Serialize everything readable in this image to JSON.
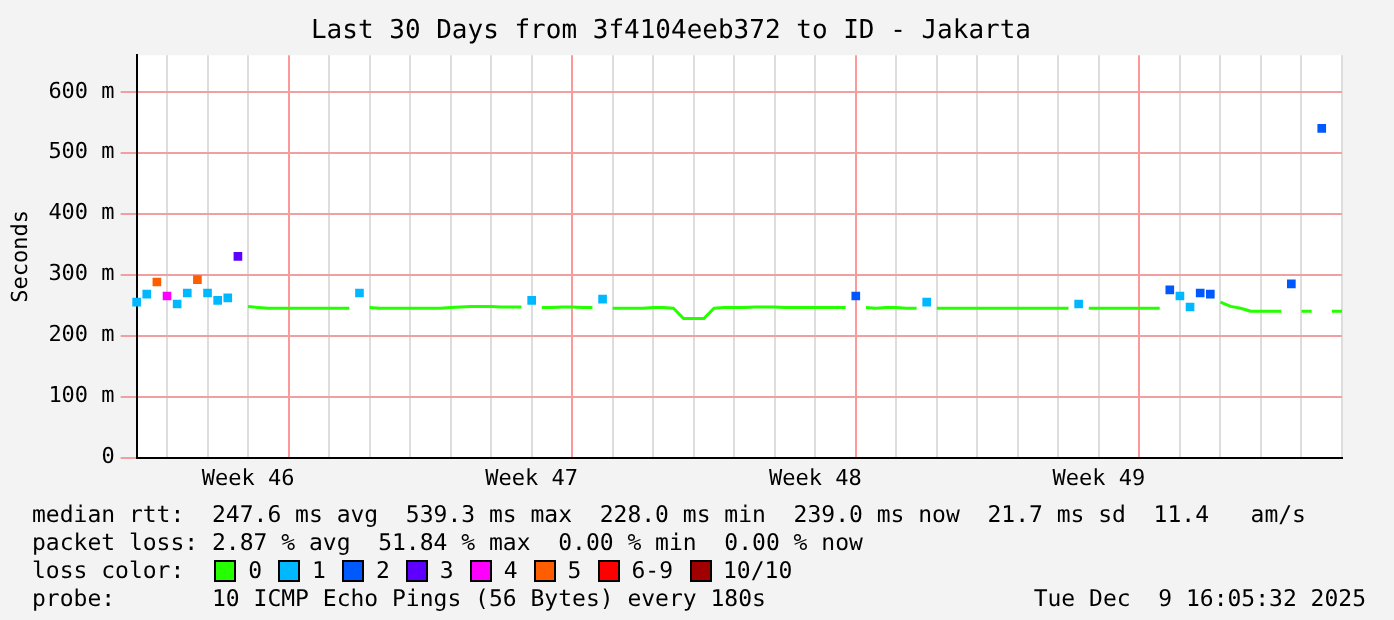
{
  "chart_data": {
    "type": "line",
    "title": "Last 30 Days from 3f4104eeb372 to ID - Jakarta",
    "ylabel": "Seconds",
    "categories": [
      null,
      null,
      null,
      null,
      null,
      null,
      null,
      null,
      null,
      null,
      null,
      "Week 46",
      null,
      null,
      null,
      null,
      null,
      null,
      null,
      null,
      null,
      null,
      null,
      null,
      null,
      null,
      null,
      null,
      null,
      null,
      null,
      null,
      null,
      null,
      null,
      null,
      null,
      null,
      null,
      "Week 47",
      null,
      null,
      null,
      null,
      null,
      null,
      null,
      null,
      null,
      null,
      null,
      null,
      null,
      null,
      null,
      null,
      null,
      null,
      null,
      null,
      null,
      null,
      null,
      null,
      null,
      null,
      null,
      "Week 48",
      null,
      null,
      null,
      null,
      null,
      null,
      null,
      null,
      null,
      null,
      null,
      null,
      null,
      null,
      null,
      null,
      null,
      null,
      null,
      null,
      null,
      null,
      null,
      null,
      null,
      null,
      null,
      "Week 49",
      null,
      null,
      null,
      null,
      null,
      null,
      null,
      null,
      null,
      null,
      null,
      null,
      null,
      null,
      null,
      null,
      null,
      null,
      null,
      null,
      null,
      null,
      null,
      null
    ],
    "ylim": [
      0,
      660
    ],
    "yticks": [
      0,
      {
        "value": 100,
        "label": "100 m"
      },
      {
        "value": 200,
        "label": "200 m"
      },
      {
        "value": 300,
        "label": "300 m"
      },
      {
        "value": 400,
        "label": "400 m"
      },
      {
        "value": 500,
        "label": "500 m"
      },
      {
        "value": 600,
        "label": "600 m"
      }
    ],
    "grid": true,
    "legend": "bottom",
    "legend_title": "loss color:",
    "line_style": "solid",
    "series": [
      {
        "name": "0",
        "color": "#26ff00",
        "values": [
          null,
          null,
          null,
          null,
          null,
          null,
          null,
          null,
          null,
          null,
          null,
          248,
          246,
          245,
          245,
          245,
          245,
          245,
          245,
          245,
          245,
          245,
          null,
          246,
          245,
          245,
          245,
          245,
          245,
          245,
          245,
          246,
          247,
          248,
          248,
          248,
          247,
          247,
          247,
          null,
          246,
          246,
          247,
          247,
          246,
          246,
          null,
          245,
          245,
          245,
          245,
          246,
          246,
          245,
          228,
          228,
          228,
          245,
          246,
          246,
          246,
          247,
          247,
          247,
          246,
          246,
          246,
          246,
          246,
          246,
          246,
          null,
          246,
          245,
          246,
          246,
          245,
          245,
          null,
          245,
          245,
          245,
          245,
          245,
          245,
          245,
          245,
          245,
          245,
          245,
          245,
          245,
          245,
          null,
          245,
          245,
          245,
          245,
          245,
          245,
          245,
          245,
          null,
          null,
          null,
          null,
          null,
          255,
          248,
          245,
          240,
          240,
          240,
          240,
          null,
          240,
          240,
          null,
          240,
          240
        ]
      },
      {
        "name": "1",
        "type": "scatter",
        "marker": "square",
        "color": "#00b8ff",
        "values": [
          255,
          268,
          null,
          null,
          252,
          270,
          null,
          270,
          258,
          262,
          null,
          null,
          null,
          null,
          null,
          null,
          null,
          null,
          null,
          null,
          null,
          null,
          270,
          null,
          null,
          null,
          null,
          null,
          null,
          null,
          null,
          null,
          null,
          null,
          null,
          null,
          null,
          null,
          null,
          258,
          null,
          null,
          null,
          null,
          null,
          null,
          260,
          null,
          null,
          null,
          null,
          null,
          null,
          null,
          null,
          null,
          null,
          null,
          null,
          null,
          null,
          null,
          null,
          null,
          null,
          null,
          null,
          null,
          null,
          null,
          null,
          null,
          null,
          null,
          null,
          null,
          null,
          null,
          255,
          null,
          null,
          null,
          null,
          null,
          null,
          null,
          null,
          null,
          null,
          null,
          null,
          null,
          null,
          252,
          null,
          null,
          null,
          null,
          null,
          null,
          null,
          null,
          null,
          265,
          247,
          null,
          null,
          null,
          null,
          null,
          null,
          null,
          null,
          null,
          null,
          null,
          null,
          null,
          null,
          null
        ]
      },
      {
        "name": "2",
        "type": "scatter",
        "marker": "square",
        "color": "#0059ff",
        "values": [
          null,
          null,
          null,
          null,
          null,
          null,
          null,
          null,
          null,
          null,
          null,
          null,
          null,
          null,
          null,
          null,
          null,
          null,
          null,
          null,
          null,
          null,
          null,
          null,
          null,
          null,
          null,
          null,
          null,
          null,
          null,
          null,
          null,
          null,
          null,
          null,
          null,
          null,
          null,
          null,
          null,
          null,
          null,
          null,
          null,
          null,
          null,
          null,
          null,
          null,
          null,
          null,
          null,
          null,
          null,
          null,
          null,
          null,
          null,
          null,
          null,
          null,
          null,
          null,
          null,
          null,
          null,
          null,
          null,
          null,
          null,
          265,
          null,
          null,
          null,
          null,
          null,
          null,
          null,
          null,
          null,
          null,
          null,
          null,
          null,
          null,
          null,
          null,
          null,
          null,
          null,
          null,
          null,
          null,
          null,
          null,
          null,
          null,
          null,
          null,
          null,
          null,
          275,
          null,
          null,
          270,
          268,
          null,
          null,
          null,
          null,
          null,
          null,
          null,
          285,
          null,
          null,
          540,
          null,
          null
        ]
      },
      {
        "name": "3",
        "type": "scatter",
        "marker": "square",
        "color": "#5e00ff",
        "values": [
          null,
          null,
          null,
          null,
          null,
          null,
          null,
          null,
          null,
          null,
          330,
          null,
          null,
          null,
          null,
          null,
          null,
          null,
          null,
          null,
          null,
          null,
          null,
          null,
          null,
          null,
          null,
          null,
          null,
          null,
          null,
          null,
          null,
          null,
          null,
          null,
          null,
          null,
          null,
          null,
          null,
          null,
          null,
          null,
          null,
          null,
          null,
          null,
          null,
          null,
          null,
          null,
          null,
          null,
          null,
          null,
          null,
          null,
          null,
          null,
          null,
          null,
          null,
          null,
          null,
          null,
          null,
          null,
          null,
          null,
          null,
          null,
          null,
          null,
          null,
          null,
          null,
          null,
          null,
          null,
          null,
          null,
          null,
          null,
          null,
          null,
          null,
          null,
          null,
          null,
          null,
          null,
          null,
          null,
          null,
          null,
          null,
          null,
          null,
          null,
          null,
          null,
          null,
          null,
          null,
          null,
          null,
          null,
          null,
          null,
          null,
          null,
          null,
          null,
          null,
          null,
          null,
          null,
          null,
          null
        ]
      },
      {
        "name": "4",
        "type": "scatter",
        "marker": "square",
        "color": "#ff00ff",
        "values": [
          null,
          null,
          null,
          265,
          null,
          null,
          null,
          null,
          null,
          null,
          null,
          null,
          null,
          null,
          null,
          null,
          null,
          null,
          null,
          null,
          null,
          null,
          null,
          null,
          null,
          null,
          null,
          null,
          null,
          null,
          null,
          null,
          null,
          null,
          null,
          null,
          null,
          null,
          null,
          null,
          null,
          null,
          null,
          null,
          null,
          null,
          null,
          null,
          null,
          null,
          null,
          null,
          null,
          null,
          null,
          null,
          null,
          null,
          null,
          null,
          null,
          null,
          null,
          null,
          null,
          null,
          null,
          null,
          null,
          null,
          null,
          null,
          null,
          null,
          null,
          null,
          null,
          null,
          null,
          null,
          null,
          null,
          null,
          null,
          null,
          null,
          null,
          null,
          null,
          null,
          null,
          null,
          null,
          null,
          null,
          null,
          null,
          null,
          null,
          null,
          null,
          null,
          null,
          null,
          null,
          null,
          null,
          null,
          null,
          null,
          null,
          null,
          null,
          null,
          null,
          null,
          null,
          null,
          null,
          null
        ]
      },
      {
        "name": "5",
        "type": "scatter",
        "marker": "square",
        "color": "#ff5e00",
        "values": [
          null,
          null,
          288,
          null,
          null,
          null,
          292,
          null,
          null,
          null,
          null,
          null,
          null,
          null,
          null,
          null,
          null,
          null,
          null,
          null,
          null,
          null,
          null,
          null,
          null,
          null,
          null,
          null,
          null,
          null,
          null,
          null,
          null,
          null,
          null,
          null,
          null,
          null,
          null,
          null,
          null,
          null,
          null,
          null,
          null,
          null,
          null,
          null,
          null,
          null,
          null,
          null,
          null,
          null,
          null,
          null,
          null,
          null,
          null,
          null,
          null,
          null,
          null,
          null,
          null,
          null,
          null,
          null,
          null,
          null,
          null,
          null,
          null,
          null,
          null,
          null,
          null,
          null,
          null,
          null,
          null,
          null,
          null,
          null,
          null,
          null,
          null,
          null,
          null,
          null,
          null,
          null,
          null,
          null,
          null,
          null,
          null,
          null,
          null,
          null,
          null,
          null,
          null,
          null,
          null,
          null,
          null,
          null,
          null,
          null,
          null,
          null,
          null,
          null,
          null,
          null,
          null,
          null,
          null,
          null
        ]
      },
      {
        "name": "6-9",
        "color": "#ff0000",
        "values": [
          null,
          null,
          null,
          null,
          null,
          null,
          null,
          null,
          null,
          null,
          null,
          null,
          null,
          null,
          null,
          null,
          null,
          null,
          null,
          null,
          null,
          null,
          null,
          null,
          null,
          null,
          null,
          null,
          null,
          null,
          null,
          null,
          null,
          null,
          null,
          null,
          null,
          null,
          null,
          null,
          null,
          null,
          null,
          null,
          null,
          null,
          null,
          null,
          null,
          null,
          null,
          null,
          null,
          null,
          null,
          null,
          null,
          null,
          null,
          null,
          null,
          null,
          null,
          null,
          null,
          null,
          null,
          null,
          null,
          null,
          null,
          null,
          null,
          null,
          null,
          null,
          null,
          null,
          null,
          null,
          null,
          null,
          null,
          null,
          null,
          null,
          null,
          null,
          null,
          null,
          null,
          null,
          null,
          null,
          null,
          null,
          null,
          null,
          null,
          null,
          null,
          null,
          null,
          null,
          null,
          null,
          null,
          null,
          null,
          null,
          null,
          null,
          null,
          null,
          null,
          null,
          null,
          null,
          null,
          null
        ]
      },
      {
        "name": "10/10",
        "color": "#a10000",
        "values": [
          null,
          null,
          null,
          null,
          null,
          null,
          null,
          null,
          null,
          null,
          null,
          null,
          null,
          null,
          null,
          null,
          null,
          null,
          null,
          null,
          null,
          null,
          null,
          null,
          null,
          null,
          null,
          null,
          null,
          null,
          null,
          null,
          null,
          null,
          null,
          null,
          null,
          null,
          null,
          null,
          null,
          null,
          null,
          null,
          null,
          null,
          null,
          null,
          null,
          null,
          null,
          null,
          null,
          null,
          null,
          null,
          null,
          null,
          null,
          null,
          null,
          null,
          null,
          null,
          null,
          null,
          null,
          null,
          null,
          null,
          null,
          null,
          null,
          null,
          null,
          null,
          null,
          null,
          null,
          null,
          null,
          null,
          null,
          null,
          null,
          null,
          null,
          null,
          null,
          null,
          null,
          null,
          null,
          null,
          null,
          null,
          null,
          null,
          null,
          null,
          null,
          null,
          null,
          null,
          null,
          null,
          null,
          null,
          null,
          null,
          null,
          null,
          null,
          null,
          null,
          null,
          null,
          null,
          null,
          null
        ]
      }
    ],
    "annotations": [
      "median rtt:  247.6 ms avg  539.3 ms max  228.0 ms min  239.0 ms now  21.7 ms sd  11.4   am/s",
      "packet loss: 2.87 % avg  51.84 % max  0.00 % min  0.00 % now",
      "probe:       10 ICMP Echo Pings (56 Bytes) every 180s",
      "Tue Dec  9 16:05:32 2025"
    ]
  }
}
